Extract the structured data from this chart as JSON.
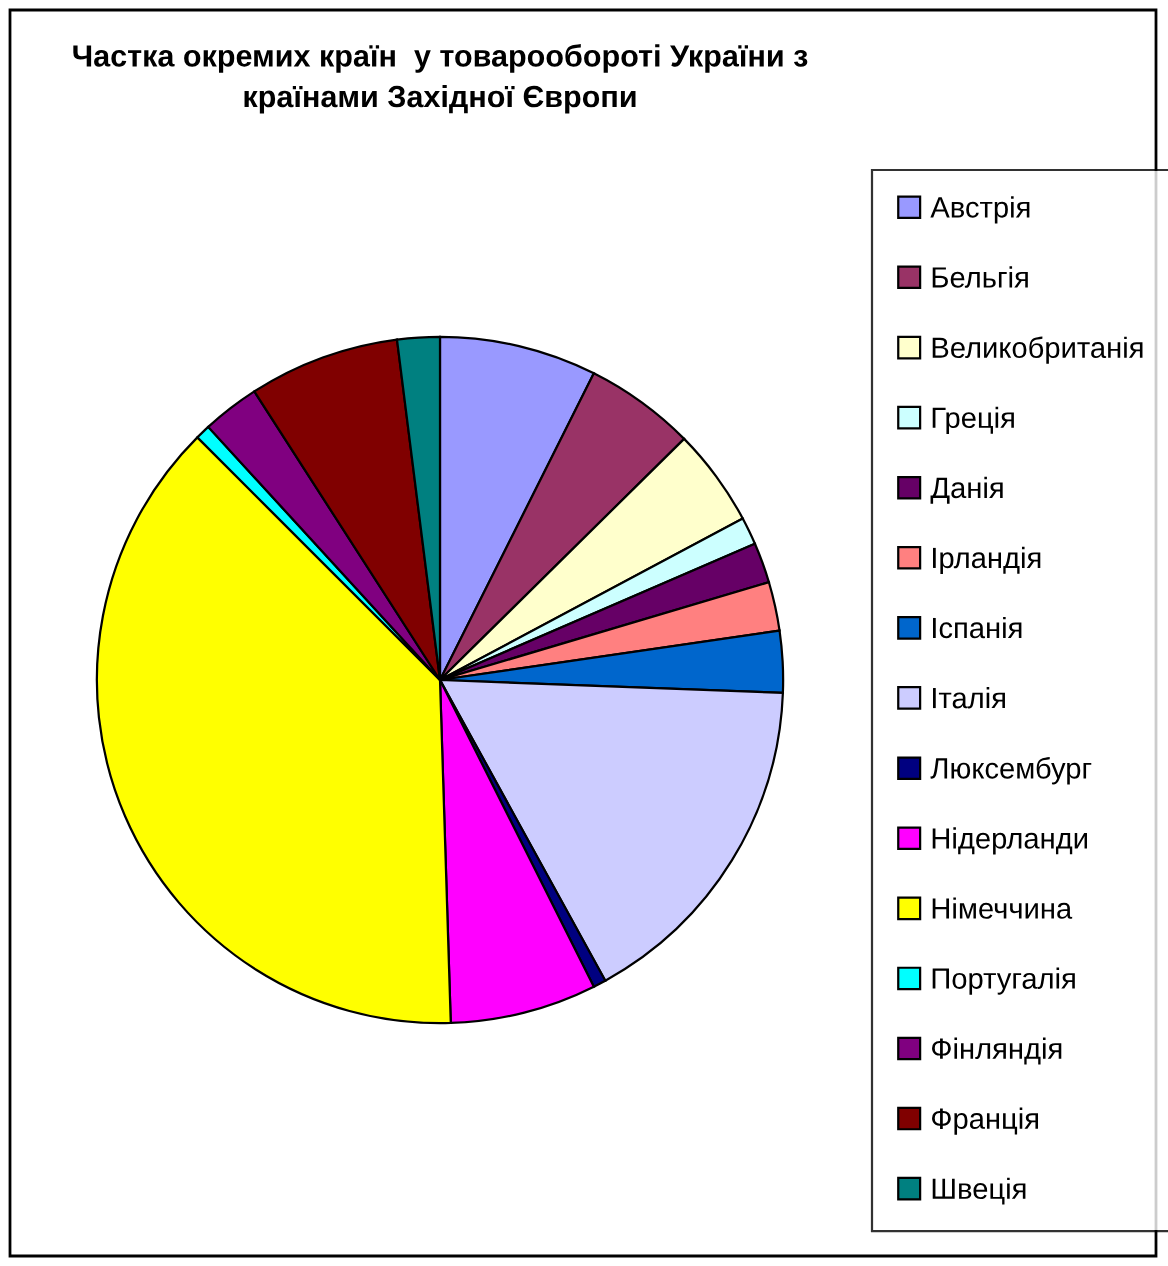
{
  "chart_data": {
    "type": "pie",
    "title": "Частка окремих країн  у товарообороті України з\nкраїнами Західної Європи",
    "categories": [
      "Австрія",
      "Бельгія",
      "Великобританія",
      "Греція",
      "Данія",
      "Ірландія",
      "Іспанія",
      "Італія",
      "Люксембург",
      "Нідерланди",
      "Німеччина",
      "Португалія",
      "Фінляндія",
      "Франція",
      "Швеція"
    ],
    "values": [
      7.4,
      5.2,
      4.6,
      1.3,
      1.9,
      2.3,
      2.9,
      16.4,
      0.6,
      6.9,
      38.0,
      0.7,
      2.7,
      7.1,
      2.0
    ],
    "colors": [
      "#9999ff",
      "#993366",
      "#ffffcc",
      "#ccffff",
      "#660066",
      "#ff8080",
      "#0066cc",
      "#ccccff",
      "#000080",
      "#ff00ff",
      "#ffff00",
      "#00ffff",
      "#800080",
      "#800000",
      "#008080"
    ],
    "legend": "right"
  }
}
